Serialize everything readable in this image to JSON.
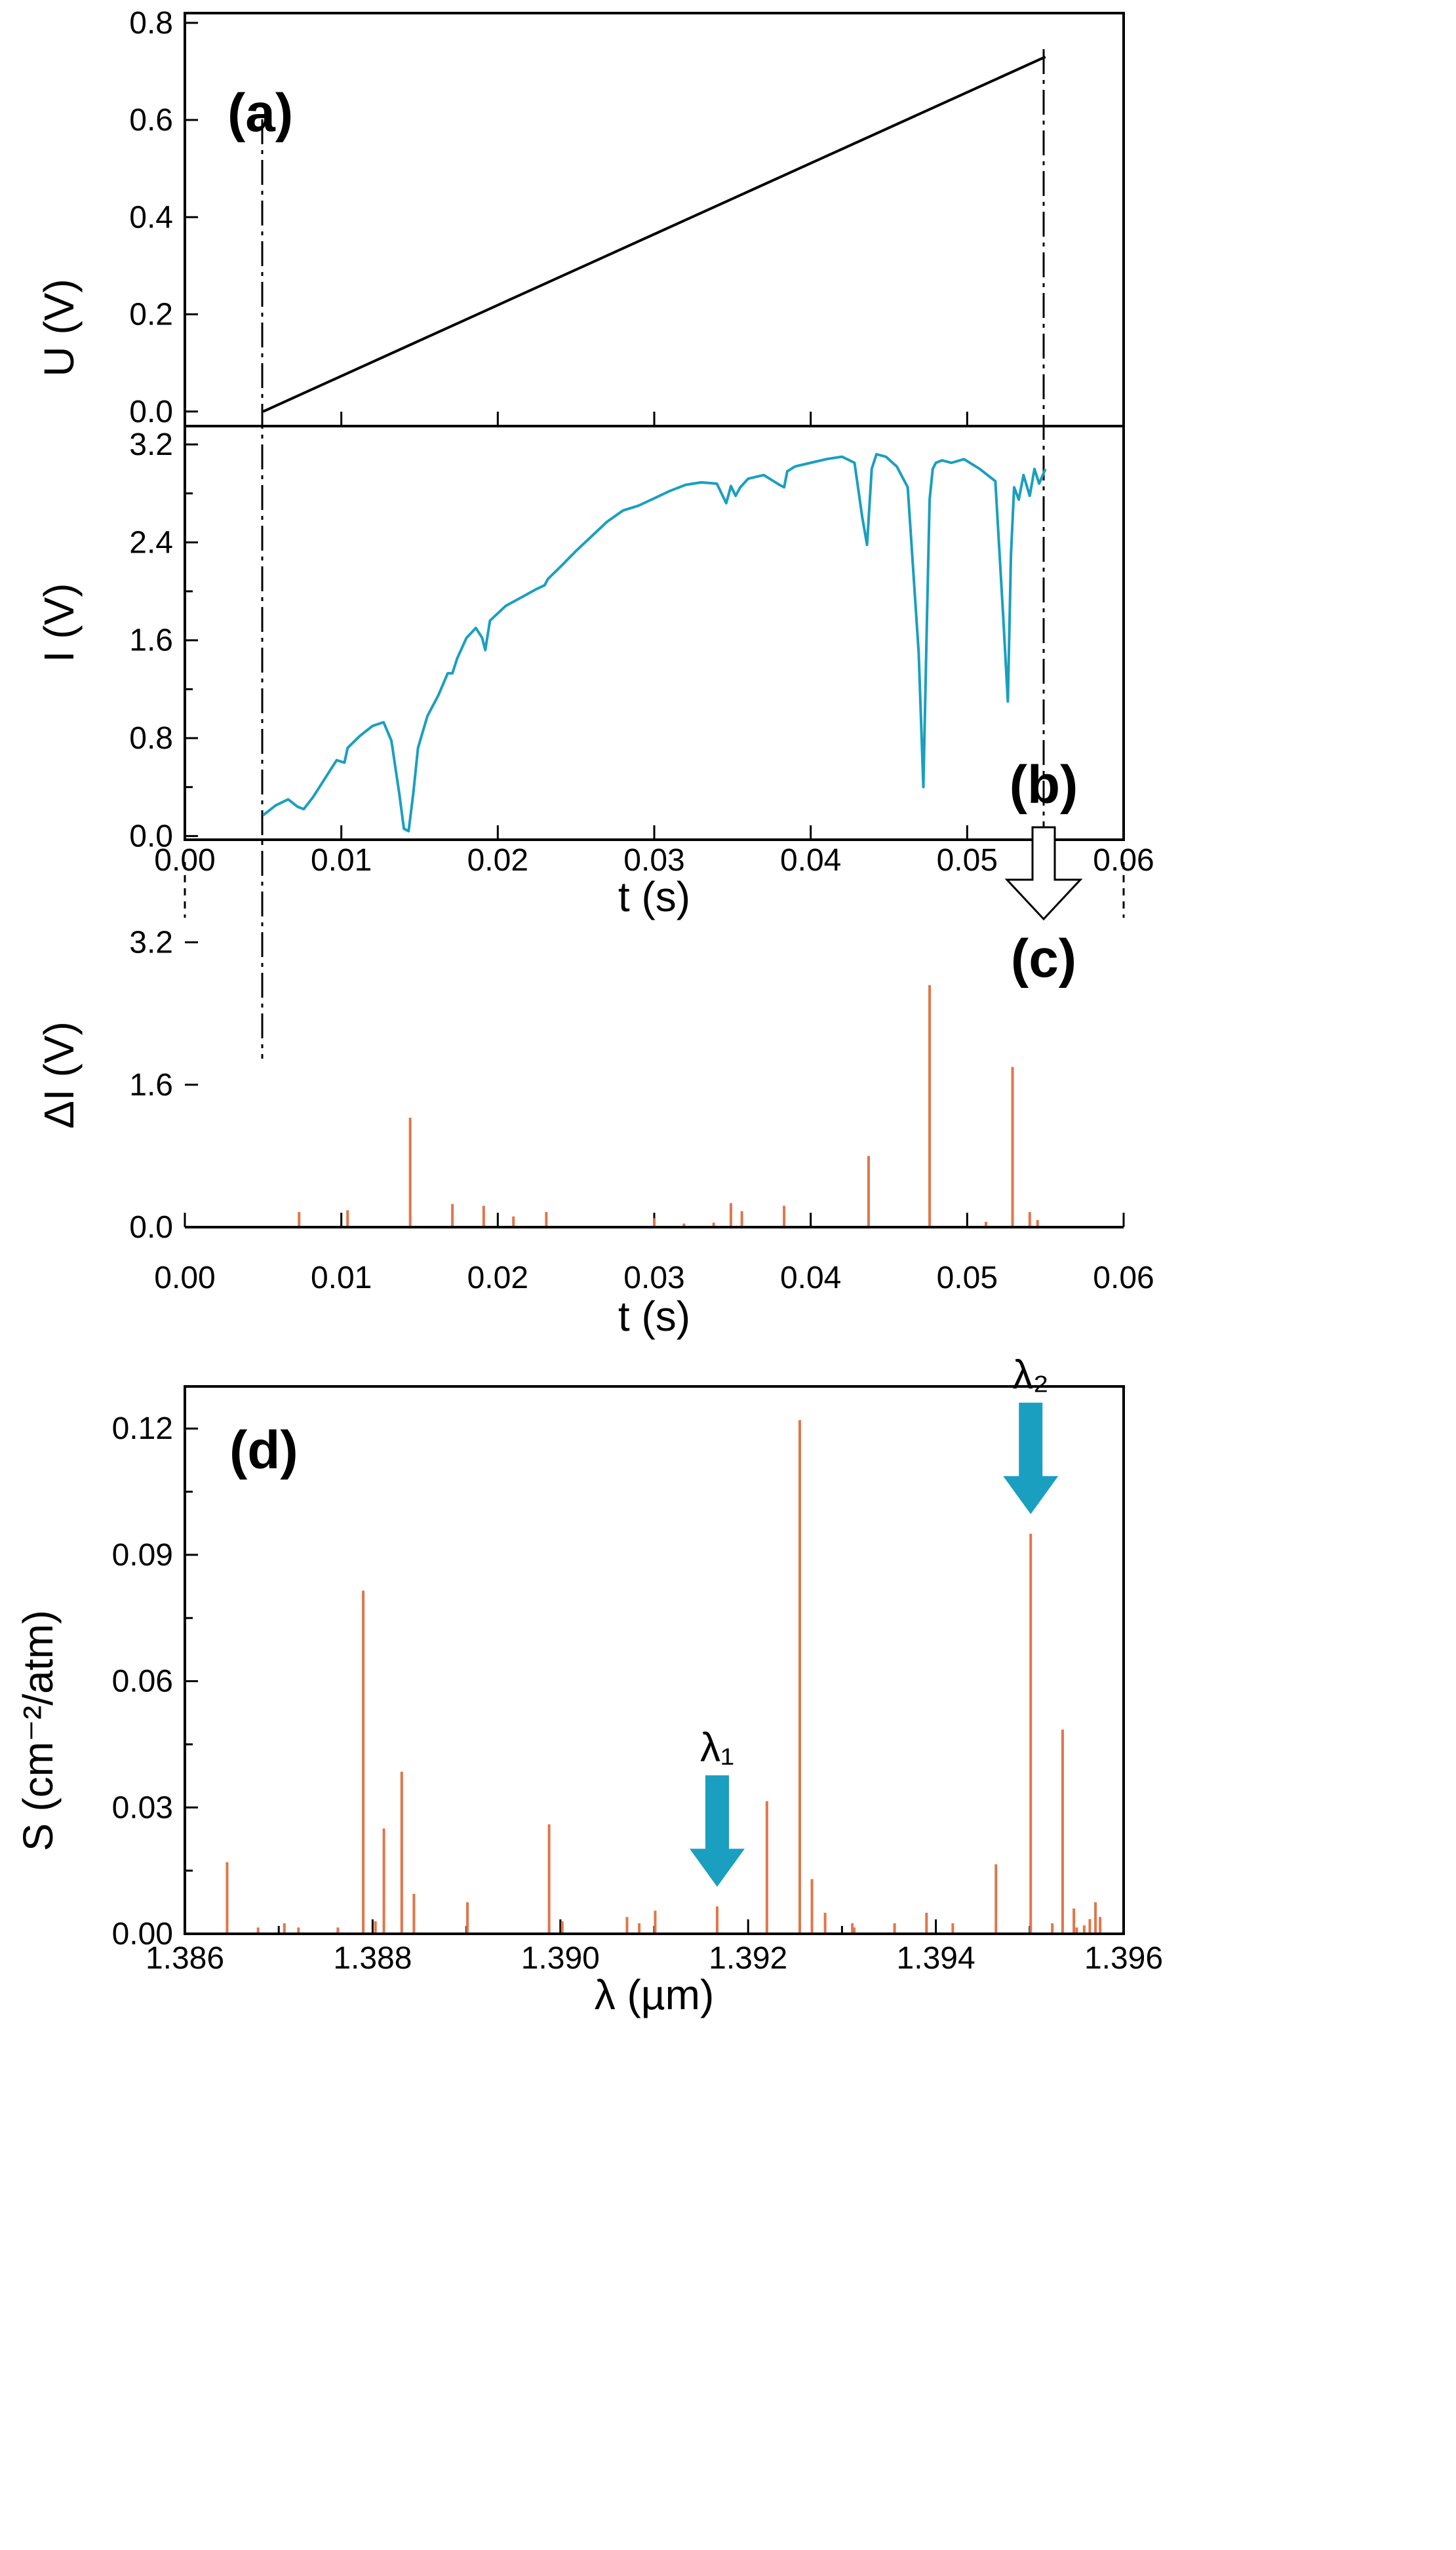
{
  "colors": {
    "current": "#1a9fbf",
    "stick": "#e0764a",
    "arrow": "#1a9fc0",
    "axis": "#000000"
  },
  "chart_data": [
    {
      "id": "a",
      "panel_label": "(a)",
      "type": "line",
      "title": "",
      "xlabel": "",
      "ylabel": "U (V)",
      "xlim": [
        0.0,
        0.06
      ],
      "ylim": [
        -0.03,
        0.82
      ],
      "yticks": [
        0.0,
        0.2,
        0.4,
        0.6,
        0.8
      ],
      "yticklabels": [
        "0.0",
        "0.2",
        "0.4",
        "0.6",
        "0.8"
      ],
      "xticks": [
        0.0,
        0.01,
        0.02,
        0.03,
        0.04,
        0.05,
        0.06
      ],
      "series": [
        {
          "name": "U",
          "x": [
            0.005,
            0.055
          ],
          "y": [
            0.0,
            0.73
          ]
        }
      ]
    },
    {
      "id": "b",
      "panel_label": "(b)",
      "type": "line",
      "title": "",
      "xlabel": "t (s)",
      "ylabel": "I (V)",
      "xlim": [
        0.0,
        0.06
      ],
      "ylim": [
        -0.03,
        3.35
      ],
      "yticks": [
        0.0,
        0.8,
        1.6,
        2.4,
        3.2
      ],
      "yticklabels": [
        "0.0",
        "0.8",
        "1.6",
        "2.4",
        "3.2"
      ],
      "xticks": [
        0.0,
        0.01,
        0.02,
        0.03,
        0.04,
        0.05,
        0.06
      ],
      "xticklabels": [
        "0.00",
        "0.01",
        "0.02",
        "0.03",
        "0.04",
        "0.05",
        "0.06"
      ],
      "series": [
        {
          "name": "I",
          "x": [
            0.005,
            0.0058,
            0.0066,
            0.0072,
            0.0076,
            0.0082,
            0.009,
            0.0097,
            0.0102,
            0.0104,
            0.0112,
            0.012,
            0.0127,
            0.0132,
            0.0137,
            0.014,
            0.0143,
            0.0146,
            0.0149,
            0.0155,
            0.0162,
            0.0168,
            0.0171,
            0.0174,
            0.018,
            0.0186,
            0.019,
            0.0192,
            0.0195,
            0.0205,
            0.0215,
            0.0225,
            0.023,
            0.0232,
            0.024,
            0.025,
            0.026,
            0.027,
            0.028,
            0.029,
            0.03,
            0.031,
            0.032,
            0.033,
            0.034,
            0.0346,
            0.0349,
            0.0352,
            0.0355,
            0.036,
            0.037,
            0.038,
            0.0383,
            0.0385,
            0.039,
            0.04,
            0.041,
            0.042,
            0.0428,
            0.0433,
            0.0436,
            0.0439,
            0.0442,
            0.0448,
            0.0455,
            0.0462,
            0.0469,
            0.0472,
            0.0474,
            0.0476,
            0.0478,
            0.048,
            0.0484,
            0.049,
            0.0498,
            0.0508,
            0.0518,
            0.0523,
            0.0526,
            0.0528,
            0.053,
            0.0533,
            0.0536,
            0.054,
            0.0543,
            0.0546,
            0.055
          ],
          "y": [
            0.17,
            0.25,
            0.3,
            0.24,
            0.22,
            0.32,
            0.48,
            0.62,
            0.6,
            0.72,
            0.82,
            0.9,
            0.93,
            0.78,
            0.35,
            0.06,
            0.04,
            0.35,
            0.72,
            0.98,
            1.15,
            1.33,
            1.33,
            1.45,
            1.62,
            1.7,
            1.62,
            1.52,
            1.76,
            1.88,
            1.95,
            2.02,
            2.05,
            2.1,
            2.2,
            2.33,
            2.45,
            2.57,
            2.66,
            2.7,
            2.76,
            2.82,
            2.87,
            2.89,
            2.88,
            2.72,
            2.86,
            2.78,
            2.85,
            2.92,
            2.95,
            2.87,
            2.85,
            2.98,
            3.02,
            3.05,
            3.08,
            3.1,
            3.05,
            2.6,
            2.38,
            3.0,
            3.12,
            3.1,
            3.02,
            2.85,
            1.5,
            0.4,
            1.6,
            2.75,
            3.0,
            3.05,
            3.07,
            3.05,
            3.08,
            3.0,
            2.9,
            1.8,
            1.1,
            2.3,
            2.85,
            2.75,
            2.95,
            2.78,
            3.0,
            2.88,
            3.0
          ]
        }
      ]
    },
    {
      "id": "c",
      "panel_label": "(c)",
      "type": "bar",
      "title": "",
      "xlabel": "t (s)",
      "ylabel": "ΔI (V)",
      "xlim": [
        0.0,
        0.06
      ],
      "ylim": [
        0.0,
        3.55
      ],
      "yticks": [
        0.0,
        1.6,
        3.2
      ],
      "yticklabels": [
        "0.0",
        "1.6",
        "3.2"
      ],
      "xticks": [
        0.0,
        0.01,
        0.02,
        0.03,
        0.04,
        0.05,
        0.06
      ],
      "xticklabels": [
        "0.00",
        "0.01",
        "0.02",
        "0.03",
        "0.04",
        "0.05",
        "0.06"
      ],
      "x": [
        0.0073,
        0.0104,
        0.0144,
        0.0171,
        0.0191,
        0.021,
        0.0231,
        0.03,
        0.0319,
        0.0338,
        0.0349,
        0.0356,
        0.0383,
        0.0437,
        0.0476,
        0.0512,
        0.0529,
        0.054,
        0.0545
      ],
      "values": [
        0.17,
        0.19,
        1.23,
        0.26,
        0.24,
        0.12,
        0.17,
        0.1,
        0.04,
        0.05,
        0.27,
        0.18,
        0.24,
        0.8,
        2.72,
        0.06,
        1.8,
        0.17,
        0.08
      ]
    },
    {
      "id": "d",
      "panel_label": "(d)",
      "type": "bar",
      "title": "",
      "xlabel": "λ (µm)",
      "ylabel": "S (cm⁻²/atm)",
      "xlim": [
        1.386,
        1.396
      ],
      "ylim": [
        0.0,
        0.13
      ],
      "yticks": [
        0.0,
        0.03,
        0.06,
        0.09,
        0.12
      ],
      "yticklabels": [
        "0.00",
        "0.03",
        "0.06",
        "0.09",
        "0.12"
      ],
      "xticks": [
        1.386,
        1.388,
        1.39,
        1.392,
        1.394,
        1.396
      ],
      "xticklabels": [
        "1.386",
        "1.388",
        "1.390",
        "1.392",
        "1.394",
        "1.396"
      ],
      "x": [
        1.38645,
        1.38678,
        1.38706,
        1.38721,
        1.38763,
        1.3879,
        1.38803,
        1.38812,
        1.38831,
        1.38844,
        1.38901,
        1.38988,
        1.39002,
        1.39071,
        1.39084,
        1.39101,
        1.39167,
        1.3922,
        1.39255,
        1.39268,
        1.39282,
        1.39311,
        1.39313,
        1.39356,
        1.3939,
        1.39418,
        1.39464,
        1.39501,
        1.39524,
        1.39535,
        1.39547,
        1.3955,
        1.39558,
        1.39564,
        1.3957,
        1.39575
      ],
      "values": [
        0.017,
        0.0015,
        0.0025,
        0.0015,
        0.0015,
        0.0815,
        0.003,
        0.025,
        0.0385,
        0.0095,
        0.0075,
        0.026,
        0.003,
        0.004,
        0.0025,
        0.0055,
        0.0065,
        0.0315,
        0.122,
        0.013,
        0.005,
        0.0025,
        0.0015,
        0.0025,
        0.005,
        0.0025,
        0.0165,
        0.095,
        0.0025,
        0.0485,
        0.006,
        0.0015,
        0.002,
        0.0035,
        0.0075,
        0.004
      ],
      "annotations": [
        {
          "label": "λ₁",
          "x": 1.39167,
          "points_to": 0.0065
        },
        {
          "label": "λ₂",
          "x": 1.39501,
          "points_to": 0.095
        }
      ]
    }
  ]
}
